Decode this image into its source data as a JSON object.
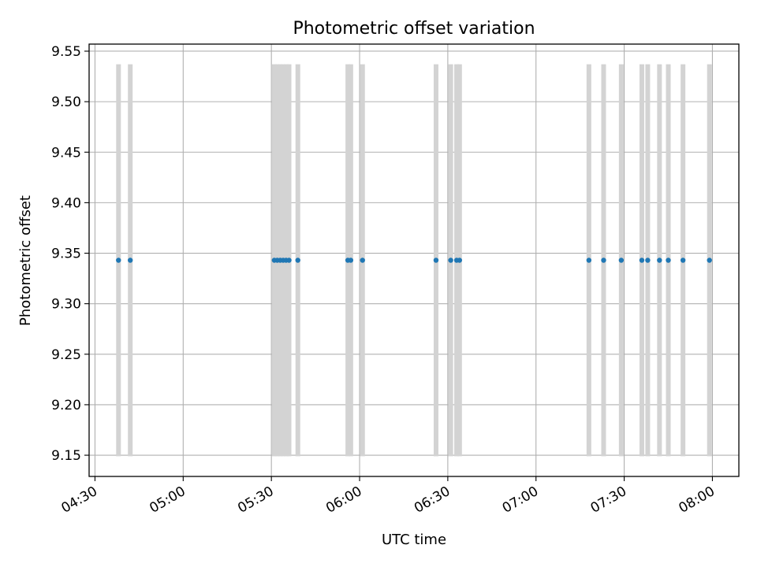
{
  "chart_data": {
    "type": "scatter",
    "title": "Photometric offset variation",
    "xlabel": "UTC time",
    "ylabel": "Photometric offset",
    "grid": true,
    "x_ticks": [
      "04:30",
      "05:00",
      "05:30",
      "06:00",
      "06:30",
      "07:00",
      "07:30",
      "08:00"
    ],
    "y_ticks": [
      "9.15",
      "9.20",
      "9.25",
      "9.30",
      "9.35",
      "9.40",
      "9.45",
      "9.50",
      "9.55"
    ],
    "xlim": [
      "04:28",
      "08:09"
    ],
    "ylim": [
      9.129,
      9.557
    ],
    "error_band": {
      "lower": 9.149,
      "upper": 9.537
    },
    "colors": {
      "points": "#1f77b4",
      "error_bars": "#d3d3d3",
      "grid": "#b0b0b0"
    },
    "points": [
      {
        "x": "04:38",
        "y": 9.343
      },
      {
        "x": "04:42",
        "y": 9.343
      },
      {
        "x": "05:31",
        "y": 9.343
      },
      {
        "x": "05:32",
        "y": 9.343
      },
      {
        "x": "05:33",
        "y": 9.343
      },
      {
        "x": "05:34",
        "y": 9.343
      },
      {
        "x": "05:35",
        "y": 9.343
      },
      {
        "x": "05:36",
        "y": 9.343
      },
      {
        "x": "05:39",
        "y": 9.343
      },
      {
        "x": "05:56",
        "y": 9.343
      },
      {
        "x": "05:57",
        "y": 9.343
      },
      {
        "x": "06:01",
        "y": 9.343
      },
      {
        "x": "06:26",
        "y": 9.343
      },
      {
        "x": "06:31",
        "y": 9.343
      },
      {
        "x": "06:33",
        "y": 9.343
      },
      {
        "x": "06:34",
        "y": 9.343
      },
      {
        "x": "07:18",
        "y": 9.343
      },
      {
        "x": "07:23",
        "y": 9.343
      },
      {
        "x": "07:29",
        "y": 9.343
      },
      {
        "x": "07:36",
        "y": 9.343
      },
      {
        "x": "07:38",
        "y": 9.343
      },
      {
        "x": "07:42",
        "y": 9.343
      },
      {
        "x": "07:45",
        "y": 9.343
      },
      {
        "x": "07:50",
        "y": 9.343
      },
      {
        "x": "07:59",
        "y": 9.343
      }
    ]
  }
}
